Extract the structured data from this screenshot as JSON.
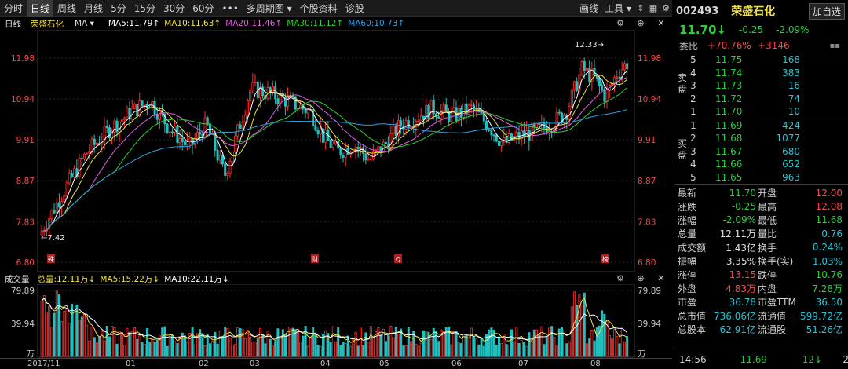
{
  "toolbar": {
    "tabs": [
      {
        "label": "分时",
        "active": false
      },
      {
        "label": "日线",
        "active": true
      },
      {
        "label": "周线",
        "active": false
      },
      {
        "label": "月线",
        "active": false
      },
      {
        "label": "5分",
        "active": false
      },
      {
        "label": "15分",
        "active": false
      },
      {
        "label": "30分",
        "active": false
      },
      {
        "label": "60分",
        "active": false
      },
      {
        "label": "•••",
        "active": false
      },
      {
        "label": "多周期图 ▾",
        "active": false
      },
      {
        "label": "个股资料",
        "active": false
      },
      {
        "label": "诊股",
        "active": false
      }
    ],
    "draw_label": "画线",
    "tools_label": "工具 ▾",
    "icons": [
      "edit-icon",
      "tools-icon",
      "arrows-icon",
      "grid-icon",
      "settings-icon"
    ]
  },
  "ma_line": {
    "period": "日线",
    "stock": "荣盛石化",
    "indicator": "MA ▾",
    "ma5": "MA5:11.79↑",
    "ma10": "MA10:11.63↑",
    "ma20": "MA20:11.46↑",
    "ma30": "MA30:11.12↑",
    "ma60": "MA60:10.73↑",
    "colors": {
      "ma5": "#ffffff",
      "ma10": "#f0e04a",
      "ma20": "#e060e0",
      "ma30": "#30d030",
      "ma60": "#30a0e0"
    }
  },
  "price_axis": {
    "ticks": [
      "11.98",
      "10.94",
      "9.91",
      "8.87",
      "7.83",
      "6.80"
    ],
    "high_label": "12.33→",
    "low_label": "←7.42"
  },
  "event_markers": [
    "殊",
    "财",
    "Q",
    "榜"
  ],
  "volume": {
    "title": "成交量",
    "total": "总量:12.11万↓",
    "ma5": "MA5:15.22万↓",
    "ma10": "MA10:22.11万↓",
    "axis": [
      "79.89",
      "39.94",
      "万"
    ]
  },
  "dates": [
    "2017/11",
    "01",
    "02",
    "03",
    "04",
    "05",
    "06",
    "07",
    "08"
  ],
  "chart_data": {
    "type": "candlestick",
    "x": [
      "2017/11",
      "01",
      "02",
      "03",
      "04",
      "05",
      "06",
      "07",
      "08"
    ],
    "ylim": [
      6.8,
      12.4
    ],
    "price_ticks": [
      11.98,
      10.94,
      9.91,
      8.87,
      7.83,
      6.8
    ],
    "high": 12.33,
    "low": 7.42,
    "close_monthly_approx": [
      7.6,
      10.6,
      9.4,
      11.4,
      10.0,
      10.2,
      10.5,
      10.3,
      11.7
    ],
    "volume_ticks": [
      79.89,
      39.94
    ],
    "volume_unit": "万"
  },
  "panel": {
    "code": "002493",
    "name": "荣盛石化",
    "fav_label": "加自选",
    "last": "11.70",
    "last_arrow": "↓",
    "change": "-0.25",
    "change_pct": "-2.09%",
    "webi_label": "委比",
    "webi_pct": "+70.76%",
    "webi_diff": "+3146",
    "sell_label": "卖盘",
    "buy_label": "买盘",
    "asks": [
      {
        "level": "5",
        "price": "11.75",
        "qty": "168"
      },
      {
        "level": "4",
        "price": "11.74",
        "qty": "383"
      },
      {
        "level": "3",
        "price": "11.73",
        "qty": "16"
      },
      {
        "level": "2",
        "price": "11.72",
        "qty": "74"
      },
      {
        "level": "1",
        "price": "11.70",
        "qty": "10"
      }
    ],
    "bids": [
      {
        "level": "1",
        "price": "11.69",
        "qty": "424"
      },
      {
        "level": "2",
        "price": "11.68",
        "qty": "1077"
      },
      {
        "level": "3",
        "price": "11.67",
        "qty": "680"
      },
      {
        "level": "4",
        "price": "11.66",
        "qty": "652"
      },
      {
        "level": "5",
        "price": "11.65",
        "qty": "963"
      }
    ],
    "stats": [
      {
        "k": "最新",
        "v": "11.70",
        "vc": "green",
        "k2": "开盘",
        "v2": "12.00",
        "v2c": "red"
      },
      {
        "k": "涨跌",
        "v": "-0.25",
        "vc": "green",
        "k2": "最高",
        "v2": "12.08",
        "v2c": "red"
      },
      {
        "k": "涨幅",
        "v": "-2.09%",
        "vc": "green",
        "k2": "最低",
        "v2": "11.68",
        "v2c": "green"
      },
      {
        "k": "总量",
        "v": "12.11万",
        "vc": "white",
        "k2": "量比",
        "v2": "0.76",
        "v2c": "cyan"
      },
      {
        "k": "成交额",
        "v": "1.43亿",
        "vc": "white",
        "k2": "换手",
        "v2": "0.24%",
        "v2c": "cyan"
      },
      {
        "k": "振幅",
        "v": "3.35%",
        "vc": "white",
        "k2": "换手(实)",
        "v2": "1.03%",
        "v2c": "cyan"
      },
      {
        "k": "涨停",
        "v": "13.15",
        "vc": "red",
        "k2": "跌停",
        "v2": "10.76",
        "v2c": "green"
      },
      {
        "k": "外盘",
        "v": "4.83万",
        "vc": "red",
        "k2": "内盘",
        "v2": "7.28万",
        "v2c": "green"
      },
      {
        "k": "市盈",
        "v": "36.78",
        "vc": "cyan",
        "k2": "市盈TTM",
        "v2": "36.50",
        "v2c": "cyan"
      },
      {
        "k": "总市值",
        "v": "736.06亿",
        "vc": "cyan",
        "k2": "流通值",
        "v2": "599.72亿",
        "v2c": "cyan"
      },
      {
        "k": "总股本",
        "v": "62.91亿",
        "vc": "cyan",
        "k2": "流通股",
        "v2": "51.26亿",
        "v2c": "cyan"
      }
    ],
    "tick": {
      "time": "14:56",
      "price": "11.69",
      "vol": "12",
      "arrow": "↓",
      "n": "2"
    }
  }
}
